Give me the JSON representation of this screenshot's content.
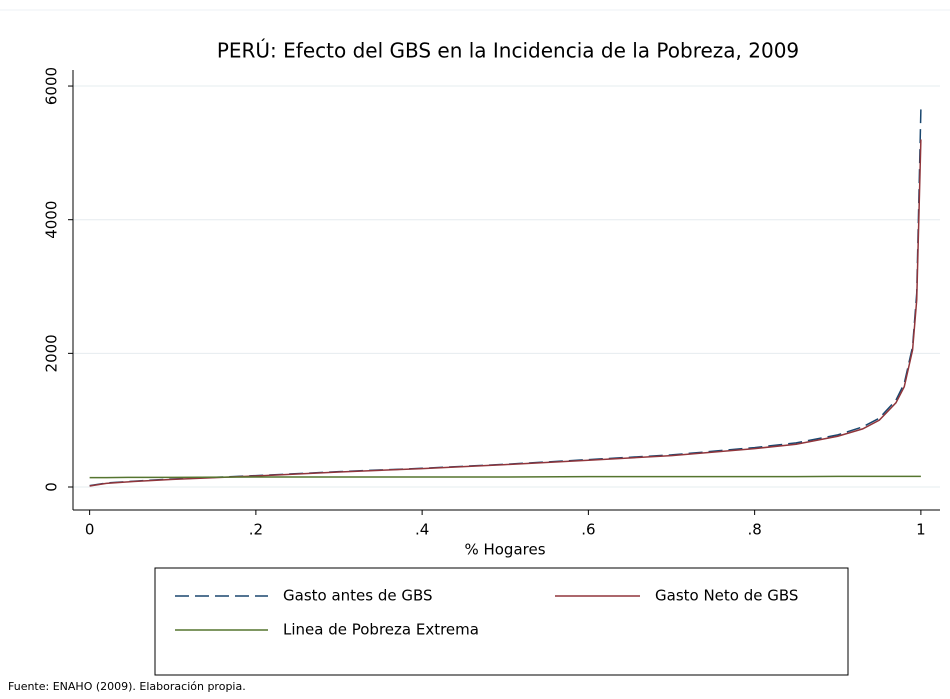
{
  "chart_data": {
    "type": "line",
    "title": "PERÚ: Efecto del GBS en la Incidencia de la Pobreza, 2009",
    "x_label": "% Hogares",
    "source": "Fuente: ENAHO (2009). Elaboración propia.",
    "x": [
      0,
      0.02,
      0.05,
      0.1,
      0.2,
      0.3,
      0.4,
      0.5,
      0.6,
      0.7,
      0.8,
      0.85,
      0.9,
      0.93,
      0.95,
      0.97,
      0.98,
      0.99,
      0.995,
      1
    ],
    "series": [
      {
        "name": "Gasto antes de GBS",
        "color": "#1a476f",
        "dashed": true,
        "values": [
          20,
          60,
          85,
          120,
          170,
          230,
          280,
          340,
          410,
          480,
          590,
          660,
          780,
          900,
          1030,
          1300,
          1550,
          2100,
          2900,
          5650
        ]
      },
      {
        "name": "Gasto Neto de GBS",
        "color": "#90353b",
        "dashed": false,
        "values": [
          15,
          55,
          80,
          115,
          165,
          225,
          275,
          335,
          400,
          470,
          575,
          640,
          760,
          870,
          1000,
          1260,
          1500,
          2050,
          2800,
          5200
        ]
      },
      {
        "name": "Linea de Pobreza Extrema",
        "color": "#55752f",
        "dashed": false,
        "values": [
          140,
          140,
          145,
          145,
          150,
          150,
          150,
          150,
          155,
          155,
          155,
          155,
          160,
          160,
          160,
          160,
          160,
          160,
          160,
          160
        ]
      }
    ],
    "xlim": [
      -0.02,
      1.023
    ],
    "ylim": [
      -344,
      6240
    ],
    "xticks": [
      0,
      {
        "value": 0.2,
        "label": ".2"
      },
      {
        "value": 0.4,
        "label": ".4"
      },
      {
        "value": 0.6,
        "label": ".6"
      },
      {
        "value": 0.8,
        "label": ".8"
      },
      1
    ],
    "yticks": [
      0,
      2000,
      4000,
      6000
    ],
    "grid": true
  }
}
